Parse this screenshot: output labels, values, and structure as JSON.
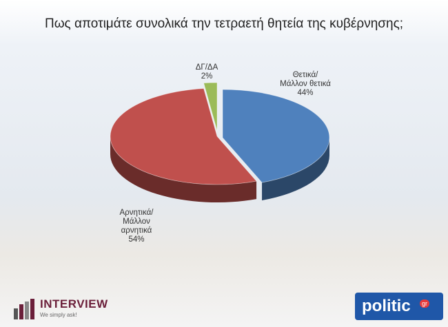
{
  "chart_data": {
    "type": "pie",
    "title": "Πως αποτιμάτε συνολικά την τετραετή θητεία της κυβέρνησης;",
    "categories": [
      "Θετικά/Μάλλον θετικά",
      "Αρνητικά/Μάλλον αρνητικά",
      "ΔΓ/ΔΑ"
    ],
    "values": [
      44,
      54,
      2
    ],
    "value_labels": [
      "44%",
      "54%",
      "2%"
    ],
    "colors": [
      "#4f81bd",
      "#c0504d",
      "#9bbb59"
    ]
  },
  "footer": {
    "interview": "INTERVIEW",
    "interview_tagline": "We simply ask!",
    "politic": "politic",
    "politic_suffix": "gr"
  }
}
